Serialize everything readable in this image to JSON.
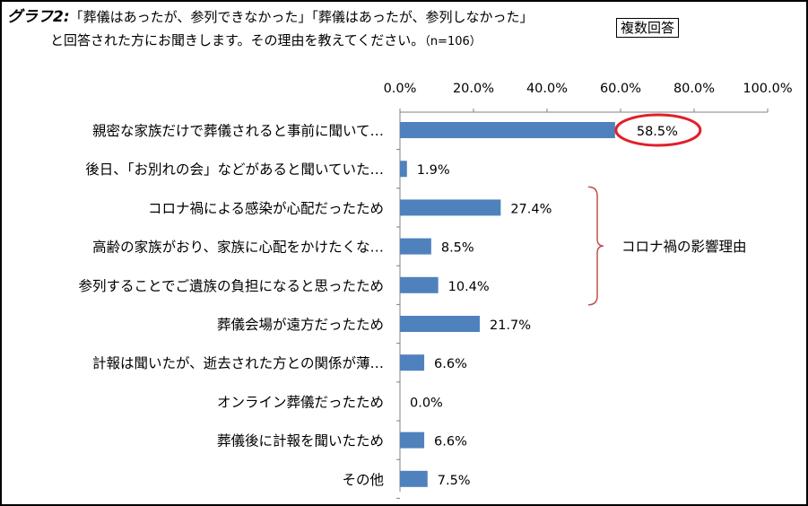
{
  "header": {
    "prefix": "グラフ2:",
    "line1": "「葬儀はあったが、参列できなかった」「葬儀はあったが、参列しなかった」",
    "line2": "と回答された方にお聞きします。その理由を教えてください。",
    "n_note": "（n=106）",
    "badge": "複数回答"
  },
  "chart_data": {
    "type": "bar",
    "orientation": "horizontal",
    "title": "",
    "xlabel": "",
    "ylabel": "",
    "xlim": [
      0,
      100
    ],
    "tick_values": [
      0,
      20,
      40,
      60,
      80,
      100
    ],
    "tick_labels": [
      "0.0%",
      "20.0%",
      "40.0%",
      "60.0%",
      "80.0%",
      "100.0%"
    ],
    "categories": [
      "親密な家族だけで葬儀されると事前に聞いて…",
      "後日、「お別れの会」などがあると聞いていた…",
      "コロナ禍による感染が心配だったため",
      "高齢の家族がおり、家族に心配をかけたくな…",
      "参列することでご遺族の負担になると思ったため",
      "葬儀会場が遠方だったため",
      "計報は聞いたが、逝去された方との関係が薄…",
      "オンライン葬儀だったため",
      "葬儀後に計報を聞いたため",
      "その他"
    ],
    "values": [
      58.5,
      1.9,
      27.4,
      8.5,
      10.4,
      21.7,
      6.6,
      0.0,
      6.6,
      7.5
    ],
    "value_labels": [
      "58.5%",
      "1.9%",
      "27.4%",
      "8.5%",
      "10.4%",
      "21.7%",
      "6.6%",
      "0.0%",
      "6.6%",
      "7.5%"
    ],
    "highlight_index": 0,
    "bracket": {
      "from_index": 2,
      "to_index": 4,
      "label": "コロナ禍の影響理由"
    },
    "grid": false,
    "legend": "none"
  },
  "colors": {
    "bar": "#4f81bd",
    "highlight_ellipse": "#e0202b",
    "bracket": "#c0504d",
    "axis": "#808080",
    "text": "#000000"
  }
}
